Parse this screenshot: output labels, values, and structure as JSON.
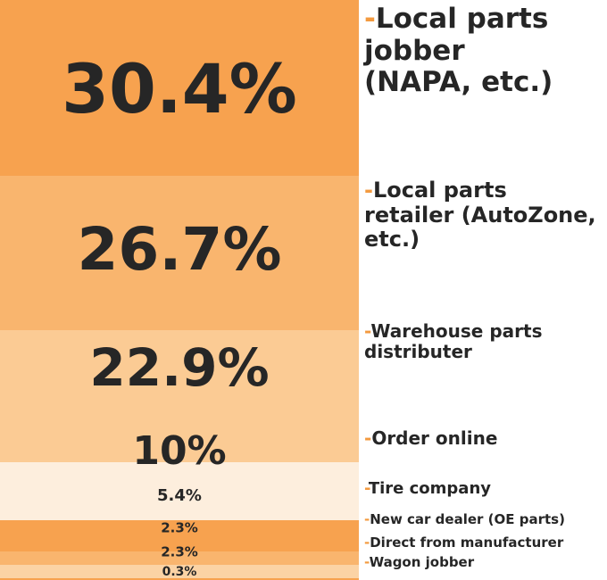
{
  "chart_data": {
    "type": "stacked-column",
    "categories": [
      "-Local parts jobber (NAPA, etc.)",
      "-Local parts retailer (AutoZone, etc.)",
      "-Warehouse parts distributer",
      "-Order online",
      "-Tire company",
      "-New car dealer (OE parts)",
      "-Direct from manufacturer",
      "-Wagon jobber"
    ],
    "values": [
      30.4,
      26.7,
      22.9,
      10,
      5.4,
      2.3,
      2.3,
      0.3
    ],
    "value_labels": [
      "30.4%",
      "26.7%",
      "22.9%",
      "10%",
      "5.4%",
      "2.3%",
      "2.3%",
      "0.3%"
    ],
    "colors": [
      "#f7a24f",
      "#f9b56e",
      "#fbcb94",
      "#fdeedd",
      "#f7a24f",
      "#f9b56e",
      "#fbd3a5",
      "#f7a24f"
    ],
    "accent": "#f39a3f"
  }
}
